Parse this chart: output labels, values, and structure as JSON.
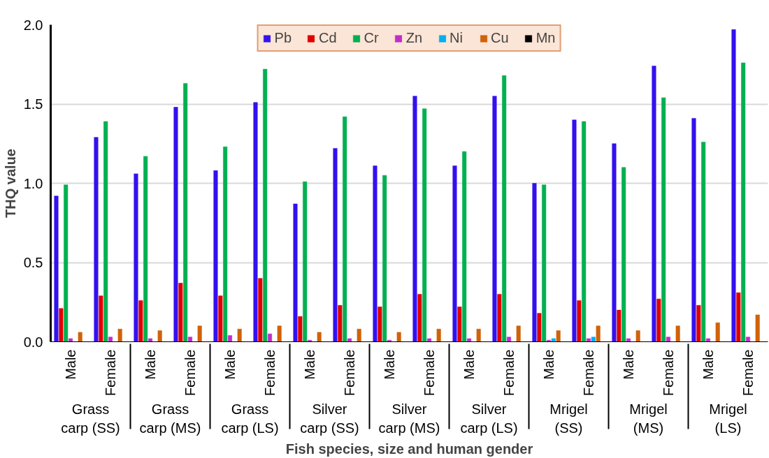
{
  "chart_data": {
    "type": "bar",
    "xlabel": "Fish species, size and human gender",
    "ylabel": "THQ value",
    "categories": [
      "Male",
      "Female",
      "Male",
      "Female",
      "Male",
      "Female",
      "Male",
      "Female",
      "Male",
      "Female",
      "Male",
      "Female",
      "Male",
      "Female",
      "Male",
      "Female",
      "Male",
      "Female"
    ],
    "annotations": [
      "Grass\ncarp (SS)",
      "Grass\ncarp (MS)",
      "Grass\ncarp (LS)",
      "Silver\ncarp (SS)",
      "Silver\ncarp (MS)",
      "Silver\ncarp (LS)",
      "Mrigel\n(SS)",
      "Mrigel\n(MS)",
      "Mrigel\n(LS)"
    ],
    "series": [
      {
        "name": "Pb",
        "color": "#3311ee",
        "values": [
          0.92,
          1.29,
          1.06,
          1.48,
          1.08,
          1.51,
          0.87,
          1.22,
          1.11,
          1.55,
          1.11,
          1.55,
          1.0,
          1.4,
          1.25,
          1.74,
          1.41,
          1.97
        ]
      },
      {
        "name": "Cd",
        "color": "#e00000",
        "values": [
          0.21,
          0.29,
          0.26,
          0.37,
          0.29,
          0.4,
          0.16,
          0.23,
          0.22,
          0.3,
          0.22,
          0.3,
          0.18,
          0.26,
          0.2,
          0.27,
          0.23,
          0.31
        ]
      },
      {
        "name": "Cr",
        "color": "#00b050",
        "values": [
          0.99,
          1.39,
          1.17,
          1.63,
          1.23,
          1.72,
          1.01,
          1.42,
          1.05,
          1.47,
          1.2,
          1.68,
          0.99,
          1.39,
          1.1,
          1.54,
          1.26,
          1.76
        ]
      },
      {
        "name": "Zn",
        "color": "#c02ec8",
        "values": [
          0.02,
          0.03,
          0.02,
          0.03,
          0.04,
          0.05,
          0.01,
          0.02,
          0.01,
          0.02,
          0.02,
          0.03,
          0.01,
          0.02,
          0.02,
          0.03,
          0.02,
          0.03
        ]
      },
      {
        "name": "Ni",
        "color": "#00b0f0",
        "values": [
          0,
          0,
          0,
          0,
          0,
          0,
          0,
          0,
          0,
          0,
          0,
          0,
          0.02,
          0.03,
          0,
          0,
          0,
          0
        ]
      },
      {
        "name": "Cu",
        "color": "#d0620a",
        "values": [
          0.06,
          0.08,
          0.07,
          0.1,
          0.08,
          0.1,
          0.06,
          0.08,
          0.06,
          0.08,
          0.08,
          0.1,
          0.07,
          0.1,
          0.07,
          0.1,
          0.12,
          0.17
        ]
      },
      {
        "name": "Mn",
        "color": "#000000",
        "values": [
          0,
          0,
          0,
          0,
          0,
          0,
          0,
          0,
          0,
          0,
          0,
          0,
          0,
          0,
          0,
          0,
          0,
          0
        ]
      }
    ],
    "ylim": [
      0,
      2
    ],
    "yticks": [
      {
        "value": 0,
        "label": "0.0"
      },
      {
        "value": 0.5,
        "label": "0.5"
      },
      {
        "value": 1,
        "label": "1.0"
      },
      {
        "value": 1.5,
        "label": "1.5"
      },
      {
        "value": 2,
        "label": "2.0"
      }
    ],
    "grid": "y",
    "legend": "top"
  }
}
